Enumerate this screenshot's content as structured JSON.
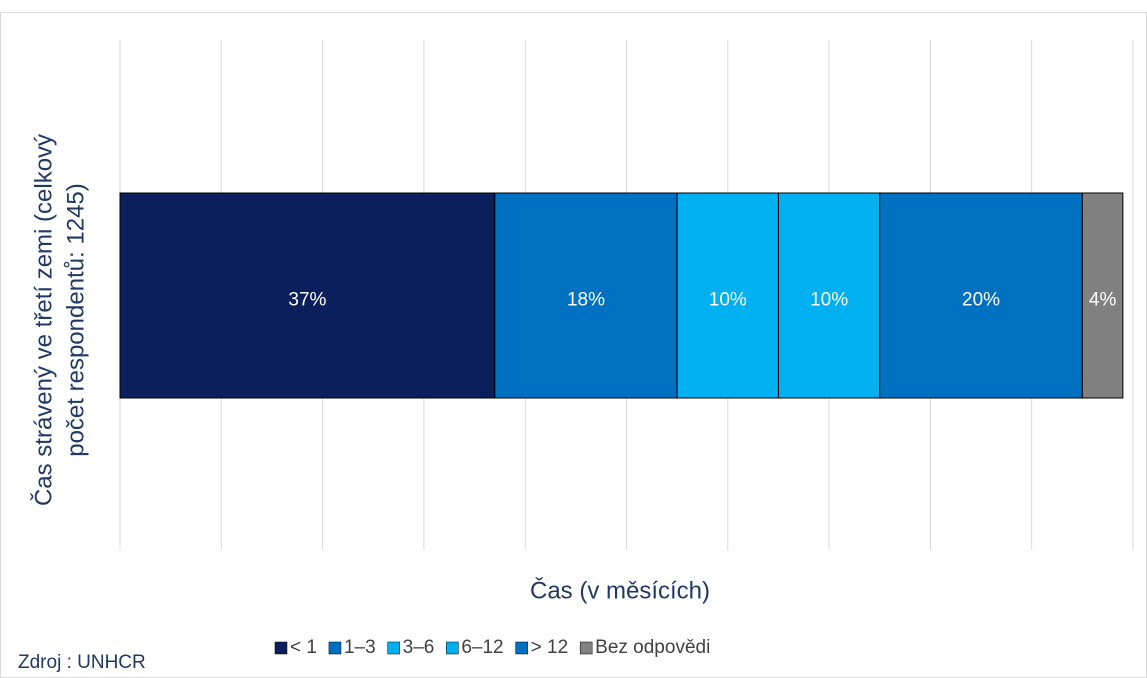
{
  "chart_data": {
    "type": "stacked-bar-horizontal",
    "y_label": [
      "Čas strávený ve třetí zemi (celkový",
      "počet respondentů: 1245)"
    ],
    "x_label": "Čas (v měsících)",
    "source": "Zdroj : UNHCR",
    "categories": [
      null
    ],
    "series": [
      {
        "name": "< 1",
        "color": "#0b1f5c",
        "values": [
          37
        ],
        "value_labels": [
          "37%"
        ]
      },
      {
        "name": "1–3",
        "color": "#0070c0",
        "values": [
          18
        ],
        "value_labels": [
          "18%"
        ]
      },
      {
        "name": "3–6",
        "color": "#00b0f0",
        "values": [
          10
        ],
        "value_labels": [
          "10%"
        ]
      },
      {
        "name": "6–12",
        "color": "#00b0f0",
        "values": [
          10
        ],
        "value_labels": [
          "10%"
        ]
      },
      {
        "name": "> 12",
        "color": "#0070c0",
        "values": [
          20
        ],
        "value_labels": [
          "20%"
        ]
      },
      {
        "name": "Bez odpovědi",
        "color": "#808080",
        "values": [
          4
        ],
        "value_labels": [
          "4%"
        ]
      }
    ],
    "xlim": [
      0,
      100
    ],
    "xticks": [
      0,
      10,
      20,
      30,
      40,
      50,
      60,
      70,
      80,
      90,
      100
    ],
    "grid": true,
    "legend": "bottom"
  }
}
